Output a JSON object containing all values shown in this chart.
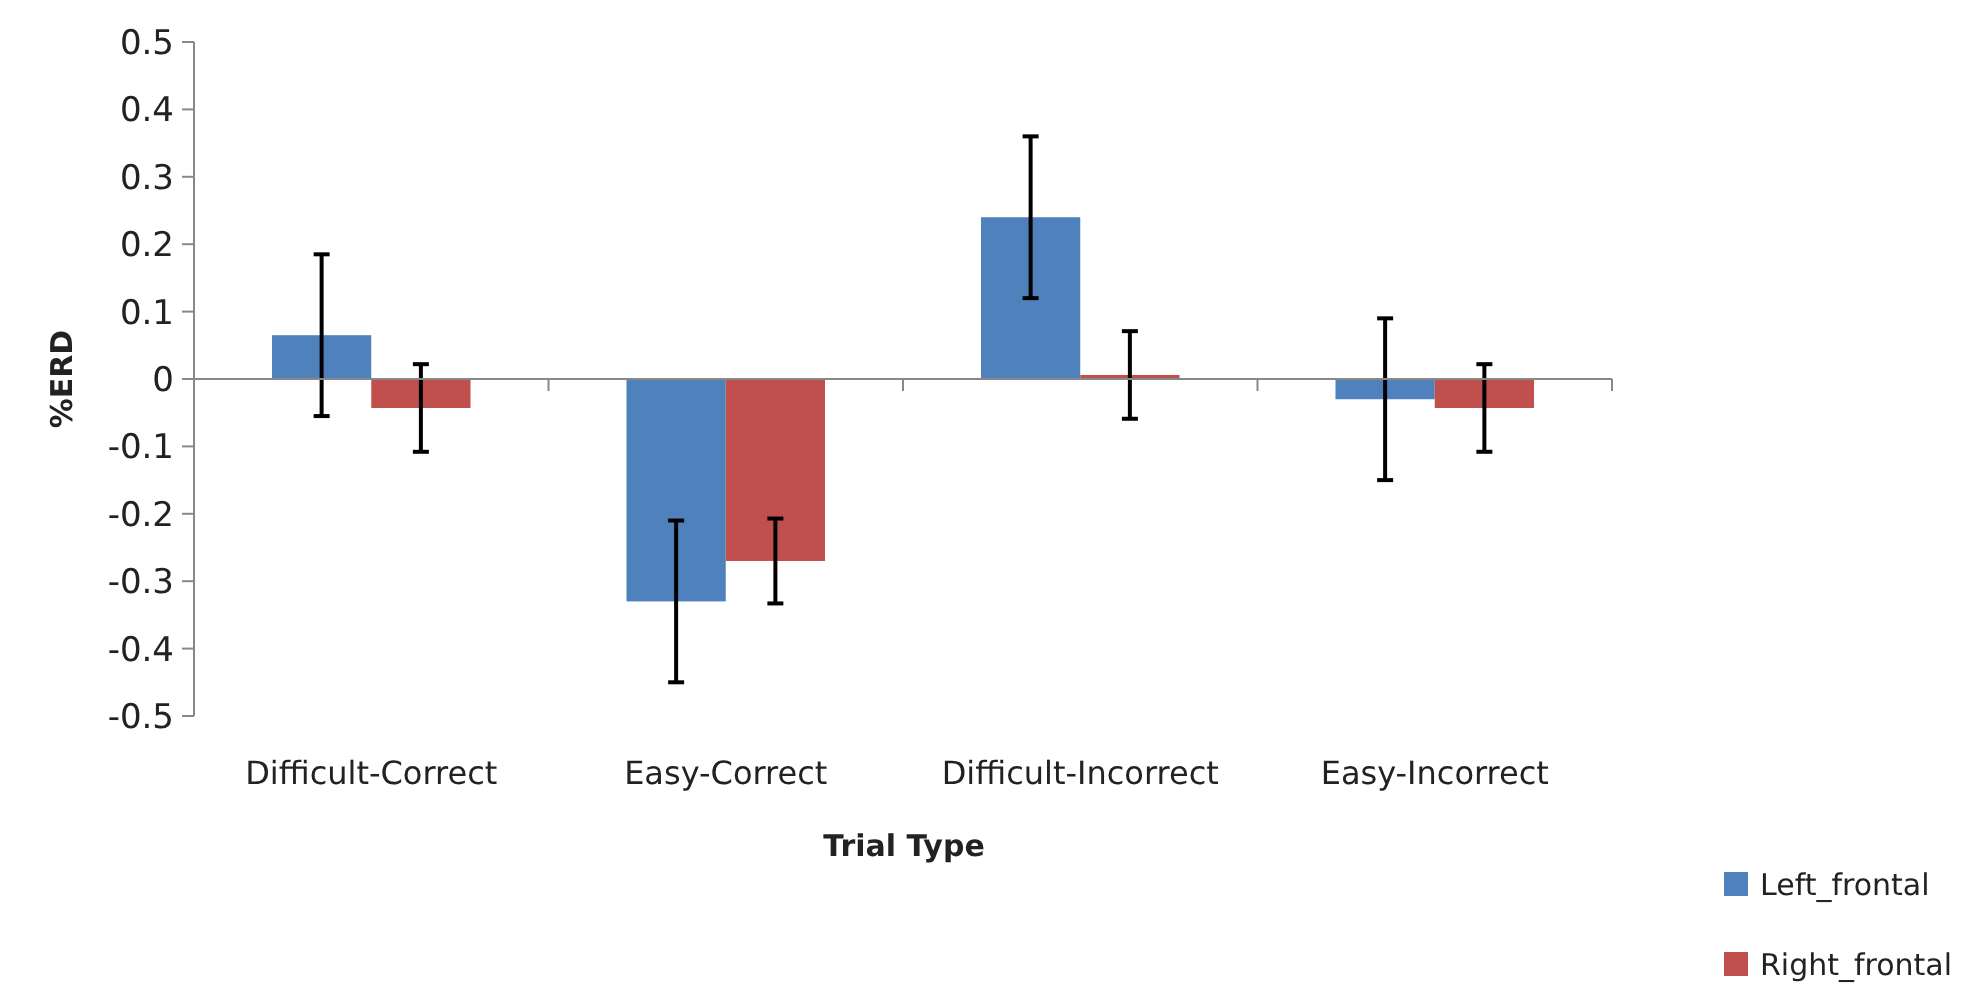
{
  "chart_data": {
    "type": "bar",
    "xlabel": "Trial Type",
    "ylabel": "%ERD",
    "categories": [
      "Difficult-Correct",
      "Easy-Correct",
      "Difficult-Incorrect",
      "Easy-Incorrect"
    ],
    "series": [
      {
        "name": "Left_frontal",
        "color": "#4f81bd",
        "values": [
          0.065,
          -0.33,
          0.24,
          -0.03
        ],
        "errors": [
          0.12,
          0.12,
          0.12,
          0.12
        ]
      },
      {
        "name": "Right_frontal",
        "color": "#c0504d",
        "values": [
          -0.043,
          -0.27,
          0.006,
          -0.043
        ],
        "errors": [
          0.065,
          0.063,
          0.065,
          0.065
        ]
      }
    ],
    "ylim": [
      -0.5,
      0.5
    ],
    "yticks": [
      -0.5,
      -0.4,
      -0.3,
      -0.2,
      -0.1,
      0,
      0.1,
      0.2,
      0.3,
      0.4,
      0.5
    ],
    "legend": "bottom right"
  }
}
